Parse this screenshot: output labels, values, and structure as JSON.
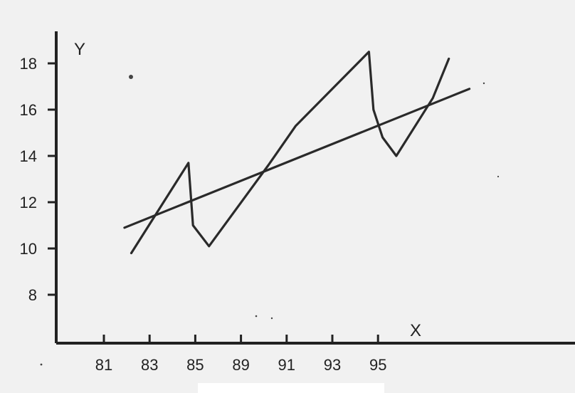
{
  "chart_data": {
    "type": "line",
    "title": "",
    "xlabel": "X",
    "ylabel": "Y",
    "x_ticks": [
      "81",
      "83",
      "85",
      "89",
      "91",
      "93",
      "95"
    ],
    "y_ticks": [
      8,
      10,
      12,
      14,
      16,
      18
    ],
    "ylim": [
      6,
      19.5
    ],
    "grid": false,
    "series": [
      {
        "values": [
          {
            "x": 0.6,
            "y": 9.8
          },
          {
            "x": 1.85,
            "y": 13.7
          },
          {
            "x": 1.95,
            "y": 11.0
          },
          {
            "x": 2.3,
            "y": 10.1
          },
          {
            "x": 3.6,
            "y": 13.6
          },
          {
            "x": 4.2,
            "y": 15.3
          },
          {
            "x": 5.8,
            "y": 18.5
          },
          {
            "x": 5.9,
            "y": 16.0
          },
          {
            "x": 6.1,
            "y": 14.8
          },
          {
            "x": 6.4,
            "y": 14.0
          },
          {
            "x": 7.2,
            "y": 16.5
          },
          {
            "x": 7.55,
            "y": 18.2
          }
        ]
      },
      {
        "values": [
          {
            "x": 0.45,
            "y": 10.9
          },
          {
            "x": 8.0,
            "y": 16.9
          }
        ]
      }
    ]
  }
}
